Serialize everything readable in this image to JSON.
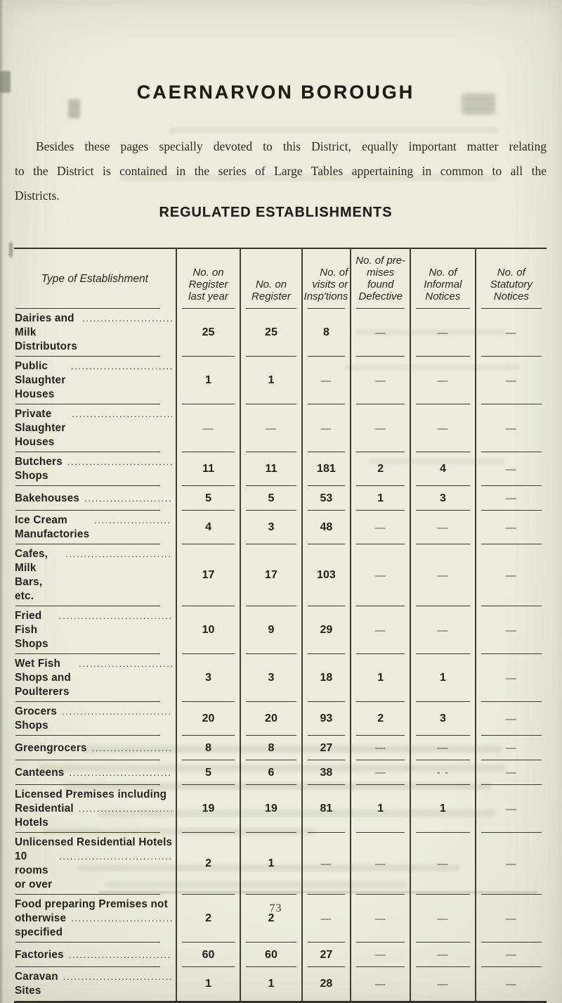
{
  "page": {
    "title": "CAERNARVON BOROUGH",
    "intro_lines": [
      "Besides these pages specially devoted to this District, equally important matter relating",
      "to the District is contained in the series of Large Tables appertaining in common to all the",
      "Districts."
    ],
    "section_heading": "REGULATED ESTABLISHMENTS",
    "page_number": "73"
  },
  "table": {
    "columns": [
      {
        "lines": [
          "Type of Establishment"
        ],
        "align": "center"
      },
      {
        "lines": [
          "No. on",
          "Register",
          "last year"
        ],
        "align": "center"
      },
      {
        "lines": [
          "No. on",
          "Register"
        ],
        "align": "center"
      },
      {
        "lines": [
          "No. of",
          "visits or",
          "Insp'tions"
        ],
        "align": "right"
      },
      {
        "lines": [
          "No. of pre-",
          "mises found",
          "Defective"
        ],
        "align": "center"
      },
      {
        "lines": [
          "No. of",
          "Informal",
          "Notices"
        ],
        "align": "center"
      },
      {
        "lines": [
          "No. of",
          "Statutory",
          "Notices"
        ],
        "align": "center"
      }
    ],
    "empty_marker": "—",
    "rows": [
      {
        "label_lines": [
          "Dairies and Milk Distributors"
        ],
        "values": [
          "25",
          "25",
          "8",
          "—",
          "—",
          "—"
        ]
      },
      {
        "label_lines": [
          "Public Slaughter Houses"
        ],
        "values": [
          "1",
          "1",
          "—",
          "—",
          "—",
          "—"
        ]
      },
      {
        "label_lines": [
          "Private Slaughter Houses"
        ],
        "values": [
          "—",
          "—",
          "—",
          "—",
          "—",
          "—"
        ]
      },
      {
        "label_lines": [
          "Butchers Shops"
        ],
        "values": [
          "11",
          "11",
          "181",
          "2",
          "4",
          "—"
        ]
      },
      {
        "label_lines": [
          "Bakehouses"
        ],
        "values": [
          "5",
          "5",
          "53",
          "1",
          "3",
          "—"
        ]
      },
      {
        "label_lines": [
          "Ice Cream Manufactories"
        ],
        "values": [
          "4",
          "3",
          "48",
          "—",
          "—",
          "—"
        ]
      },
      {
        "label_lines": [
          "Cafes, Milk Bars, etc."
        ],
        "values": [
          "17",
          "17",
          "103",
          "—",
          "—",
          "—"
        ]
      },
      {
        "label_lines": [
          "Fried Fish Shops"
        ],
        "values": [
          "10",
          "9",
          "29",
          "—",
          "—",
          "—"
        ]
      },
      {
        "label_lines": [
          "Wet Fish Shops and Poulterers"
        ],
        "values": [
          "3",
          "3",
          "18",
          "1",
          "1",
          "—"
        ]
      },
      {
        "label_lines": [
          "Grocers Shops"
        ],
        "values": [
          "20",
          "20",
          "93",
          "2",
          "3",
          "—"
        ]
      },
      {
        "label_lines": [
          "Greengrocers"
        ],
        "values": [
          "8",
          "8",
          "27",
          "—",
          "—",
          "—"
        ]
      },
      {
        "label_lines": [
          "Canteens"
        ],
        "values": [
          "5",
          "6",
          "38",
          "—",
          "- -",
          "—"
        ]
      },
      {
        "label_lines": [
          "Licensed Premises including",
          "Residential Hotels"
        ],
        "values": [
          "19",
          "19",
          "81",
          "1",
          "1",
          "—"
        ]
      },
      {
        "label_lines": [
          "Unlicensed Residential Hotels",
          "10 rooms or over"
        ],
        "values": [
          "2",
          "1",
          "—",
          "—",
          "—",
          "—"
        ]
      },
      {
        "label_lines": [
          "Food preparing Premises not",
          "otherwise specified"
        ],
        "values": [
          "2",
          "2",
          "—",
          "—",
          "—",
          "—"
        ]
      },
      {
        "label_lines": [
          "Factories"
        ],
        "values": [
          "60",
          "60",
          "27",
          "—",
          "—",
          "—"
        ]
      },
      {
        "label_lines": [
          "Caravan Sites"
        ],
        "values": [
          "1",
          "1",
          "28",
          "—",
          "—",
          "—"
        ]
      }
    ]
  },
  "colors": {
    "paper": "#e8e9da",
    "ink": "#23231b",
    "rule": "#3c3c31"
  }
}
